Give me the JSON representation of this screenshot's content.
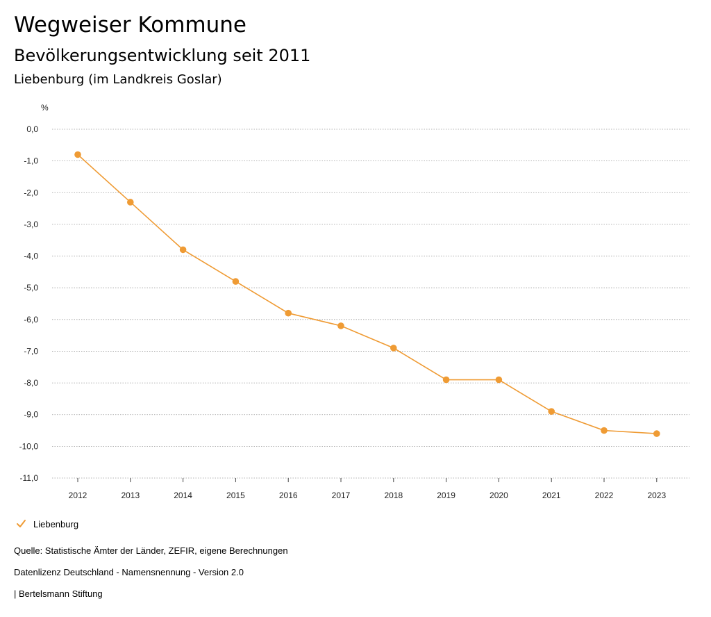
{
  "header": {
    "title": "Wegweiser Kommune",
    "subtitle": "Bevölkerungsentwicklung seit 2011",
    "region": "Liebenburg (im Landkreis Goslar)"
  },
  "chart_data": {
    "type": "line",
    "title": "Bevölkerungsentwicklung seit 2011",
    "unit_label": "%",
    "xlabel": "",
    "ylabel": "%",
    "categories": [
      "2012",
      "2013",
      "2014",
      "2015",
      "2016",
      "2017",
      "2018",
      "2019",
      "2020",
      "2021",
      "2022",
      "2023"
    ],
    "series": [
      {
        "name": "Liebenburg",
        "color": "#ef9b34",
        "values": [
          -0.8,
          -2.3,
          -3.8,
          -4.8,
          -5.8,
          -6.2,
          -6.9,
          -7.9,
          -7.9,
          -8.9,
          -9.5,
          -9.6
        ]
      }
    ],
    "ylim": [
      -11,
      0
    ],
    "yticks": [
      0,
      -1,
      -2,
      -3,
      -4,
      -5,
      -6,
      -7,
      -8,
      -9,
      -10,
      -11
    ],
    "ytick_labels": [
      "0,0",
      "-1,0",
      "-2,0",
      "-3,0",
      "-4,0",
      "-5,0",
      "-6,0",
      "-7,0",
      "-8,0",
      "-9,0",
      "-10,0",
      "-11,0"
    ],
    "grid": true,
    "legend_position": "bottom-left"
  },
  "legend": {
    "label": "Liebenburg",
    "icon": "check-icon"
  },
  "footer": {
    "source": "Quelle: Statistische Ämter der Länder, ZEFIR, eigene Berechnungen",
    "license": "Datenlizenz Deutschland - Namensnennung - Version 2.0",
    "publisher": "| Bertelsmann Stiftung"
  }
}
